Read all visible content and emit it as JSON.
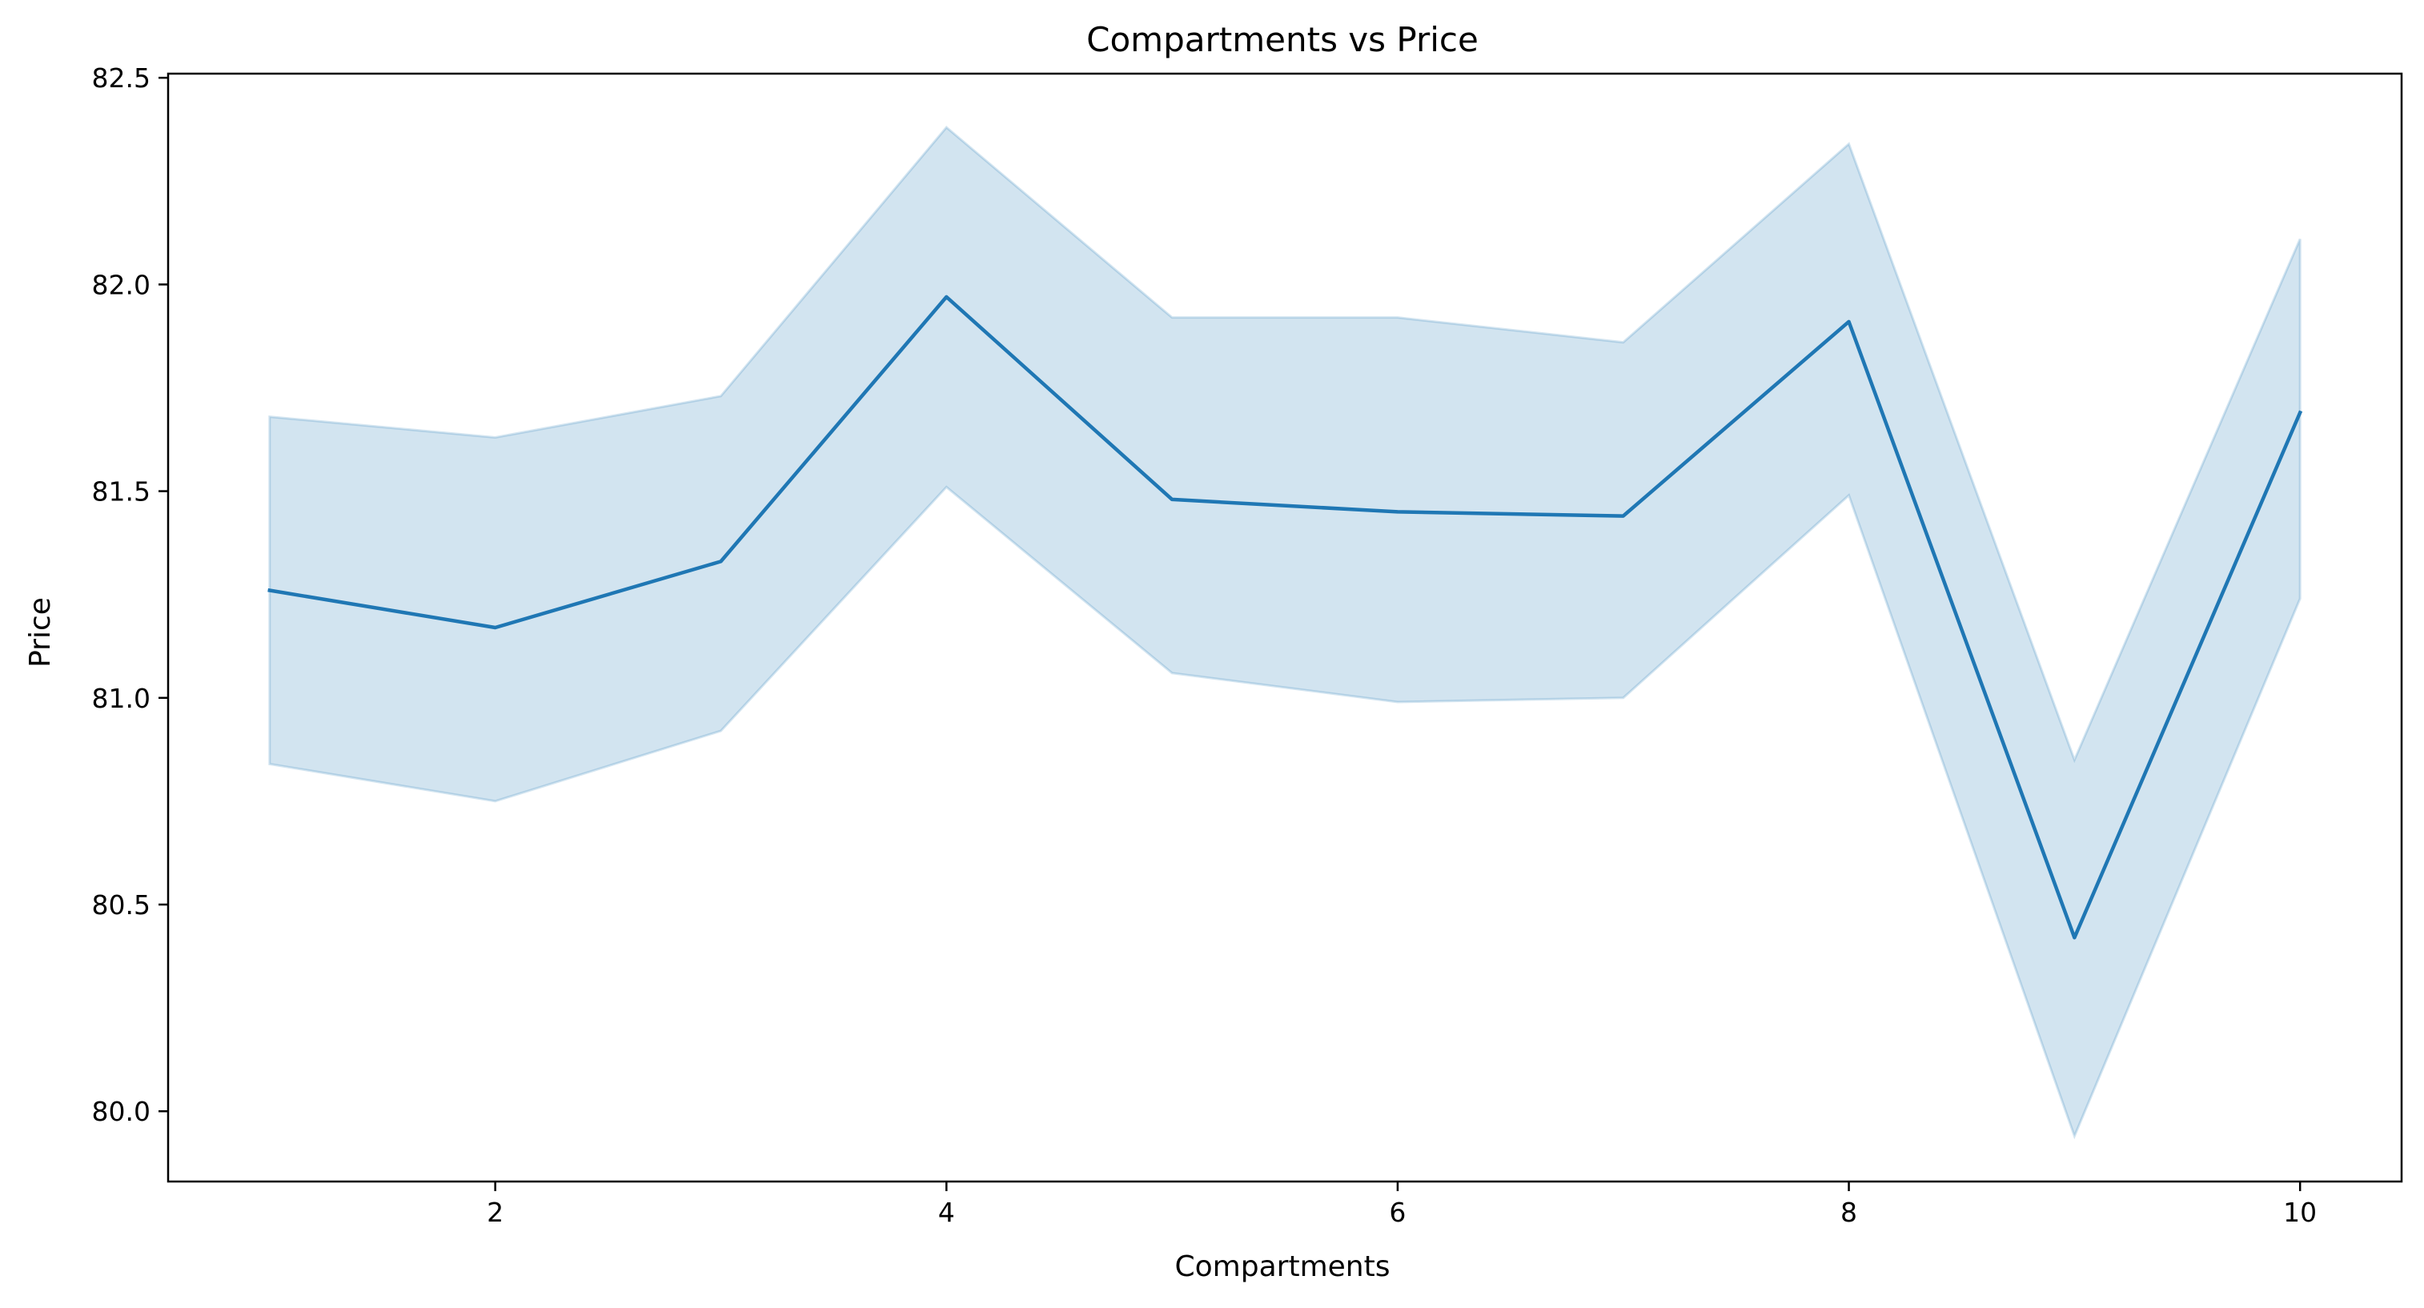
{
  "chart_data": {
    "type": "line",
    "title": "Compartments vs Price",
    "xlabel": "Compartments",
    "ylabel": "Price",
    "xlim": [
      0.55,
      10.45
    ],
    "ylim": [
      79.83,
      82.51
    ],
    "xticks": [
      2,
      4,
      6,
      8,
      10
    ],
    "xtick_labels": [
      "2",
      "4",
      "6",
      "8",
      "10"
    ],
    "yticks": [
      80.0,
      80.5,
      81.0,
      81.5,
      82.0,
      82.5
    ],
    "ytick_labels": [
      "80.0",
      "80.5",
      "81.0",
      "81.5",
      "82.0",
      "82.5"
    ],
    "grid": false,
    "legend": "none",
    "x": [
      1,
      2,
      3,
      4,
      5,
      6,
      7,
      8,
      9,
      10
    ],
    "series": [
      {
        "values": [
          81.26,
          81.17,
          81.33,
          81.97,
          81.48,
          81.45,
          81.44,
          81.91,
          80.42,
          81.69
        ],
        "ci_lower": [
          80.84,
          80.75,
          80.92,
          81.51,
          81.06,
          80.99,
          81.0,
          81.49,
          79.94,
          81.24
        ],
        "ci_upper": [
          81.68,
          81.63,
          81.73,
          82.38,
          81.92,
          81.92,
          81.86,
          82.34,
          80.85,
          82.11
        ],
        "color": "#1f77b4",
        "band_color": "#1f77b4"
      }
    ]
  }
}
